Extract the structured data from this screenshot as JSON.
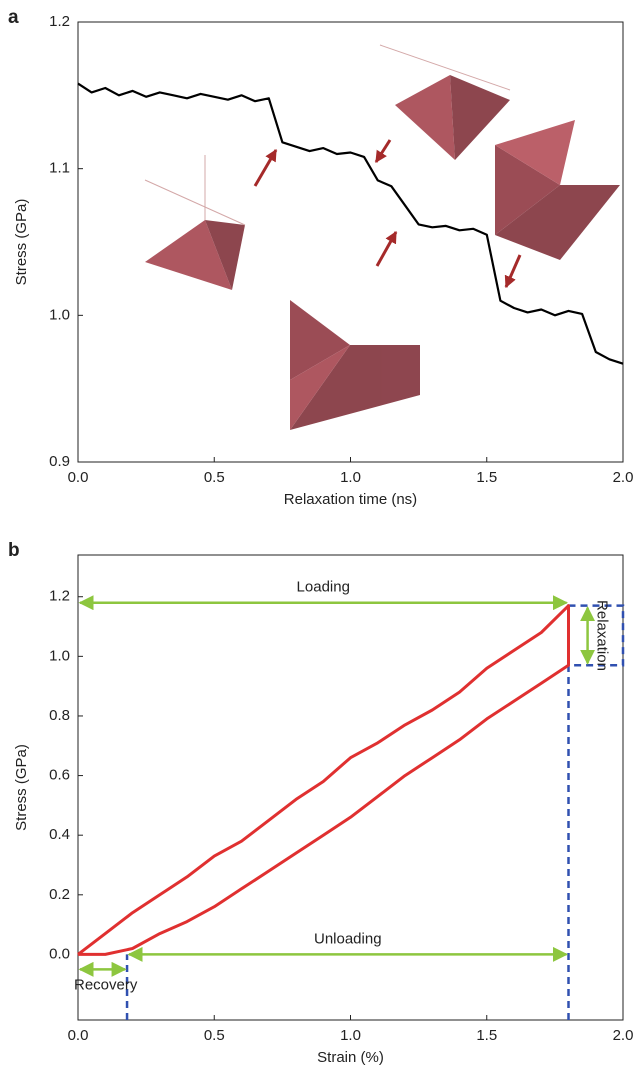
{
  "chart_data": [
    {
      "type": "line",
      "panel_label": "a",
      "x_label": "Relaxation time (ns)",
      "y_label": "Stress (GPa)",
      "x": [
        0,
        0.05,
        0.1,
        0.15,
        0.2,
        0.25,
        0.3,
        0.35,
        0.4,
        0.45,
        0.5,
        0.55,
        0.6,
        0.65,
        0.7,
        0.75,
        0.8,
        0.85,
        0.9,
        0.95,
        1.0,
        1.05,
        1.1,
        1.15,
        1.2,
        1.25,
        1.3,
        1.35,
        1.4,
        1.45,
        1.5,
        1.55,
        1.6,
        1.65,
        1.7,
        1.75,
        1.8,
        1.85,
        1.9,
        1.95,
        2.0
      ],
      "values": [
        1.158,
        1.152,
        1.155,
        1.15,
        1.153,
        1.149,
        1.152,
        1.15,
        1.148,
        1.151,
        1.149,
        1.147,
        1.15,
        1.146,
        1.148,
        1.118,
        1.115,
        1.112,
        1.114,
        1.11,
        1.111,
        1.108,
        1.092,
        1.088,
        1.075,
        1.062,
        1.06,
        1.061,
        1.058,
        1.059,
        1.055,
        1.01,
        1.005,
        1.002,
        1.004,
        1.0,
        1.003,
        1.001,
        0.975,
        0.97,
        0.967
      ],
      "color": "#000000",
      "xlim": [
        0,
        2
      ],
      "ylim": [
        0.9,
        1.2
      ],
      "xticks": [
        {
          "value": 0,
          "label": "0.0"
        },
        0.5,
        {
          "value": 1,
          "label": "1.0"
        },
        1.5,
        {
          "value": 2,
          "label": "2.0"
        }
      ],
      "yticks": [
        0.9,
        {
          "value": 1,
          "label": "1.0"
        },
        1.1,
        1.2
      ]
    },
    {
      "type": "line",
      "panel_label": "b",
      "x_label": "Strain (%)",
      "y_label": "Stress (GPa)",
      "series": [
        {
          "color": "#e03030",
          "x": [
            0,
            0.1,
            0.2,
            0.3,
            0.4,
            0.5,
            0.6,
            0.7,
            0.8,
            0.9,
            1.0,
            1.1,
            1.2,
            1.3,
            1.4,
            1.5,
            1.6,
            1.7,
            1.8,
            1.8,
            1.7,
            1.6,
            1.5,
            1.4,
            1.3,
            1.2,
            1.1,
            1.0,
            0.9,
            0.8,
            0.7,
            0.6,
            0.5,
            0.4,
            0.3,
            0.2,
            0.1,
            0
          ],
          "values": [
            0,
            0.07,
            0.14,
            0.2,
            0.26,
            0.33,
            0.38,
            0.45,
            0.52,
            0.58,
            0.66,
            0.71,
            0.77,
            0.82,
            0.88,
            0.96,
            1.02,
            1.08,
            1.17,
            0.97,
            0.91,
            0.85,
            0.79,
            0.72,
            0.66,
            0.6,
            0.53,
            0.46,
            0.4,
            0.34,
            0.28,
            0.22,
            0.16,
            0.11,
            0.07,
            0.02,
            0.0,
            0.0
          ]
        }
      ],
      "annotations": [
        {
          "text": "Loading",
          "x": [
            0,
            1.8
          ],
          "y": 1.18
        },
        {
          "text": "Unloading",
          "x": [
            0.18,
            1.8
          ],
          "y": 0
        },
        {
          "text": "Relaxation",
          "x": 1.87,
          "y": [
            0.97,
            1.17
          ]
        },
        {
          "text": "Recovery",
          "x": [
            0,
            0.18
          ],
          "y": -0.05
        }
      ],
      "guides": [
        {
          "x": 1.8,
          "y": 1.17
        },
        {
          "x": 0.18,
          "y": 0
        }
      ],
      "box": {
        "x": [
          1.8,
          2.0
        ],
        "y": [
          0.97,
          1.17
        ]
      },
      "xlim": [
        0,
        2
      ],
      "ylim": [
        -0.22,
        1.34
      ],
      "xticks": [
        {
          "value": 0,
          "label": "0.0"
        },
        0.5,
        {
          "value": 1,
          "label": "1.0"
        },
        1.5,
        {
          "value": 2,
          "label": "2.0"
        }
      ],
      "yticks": [
        {
          "value": 0,
          "label": "0.0"
        },
        0.2,
        0.4,
        0.6,
        0.8,
        {
          "value": 1,
          "label": "1.0"
        },
        1.2
      ]
    }
  ]
}
